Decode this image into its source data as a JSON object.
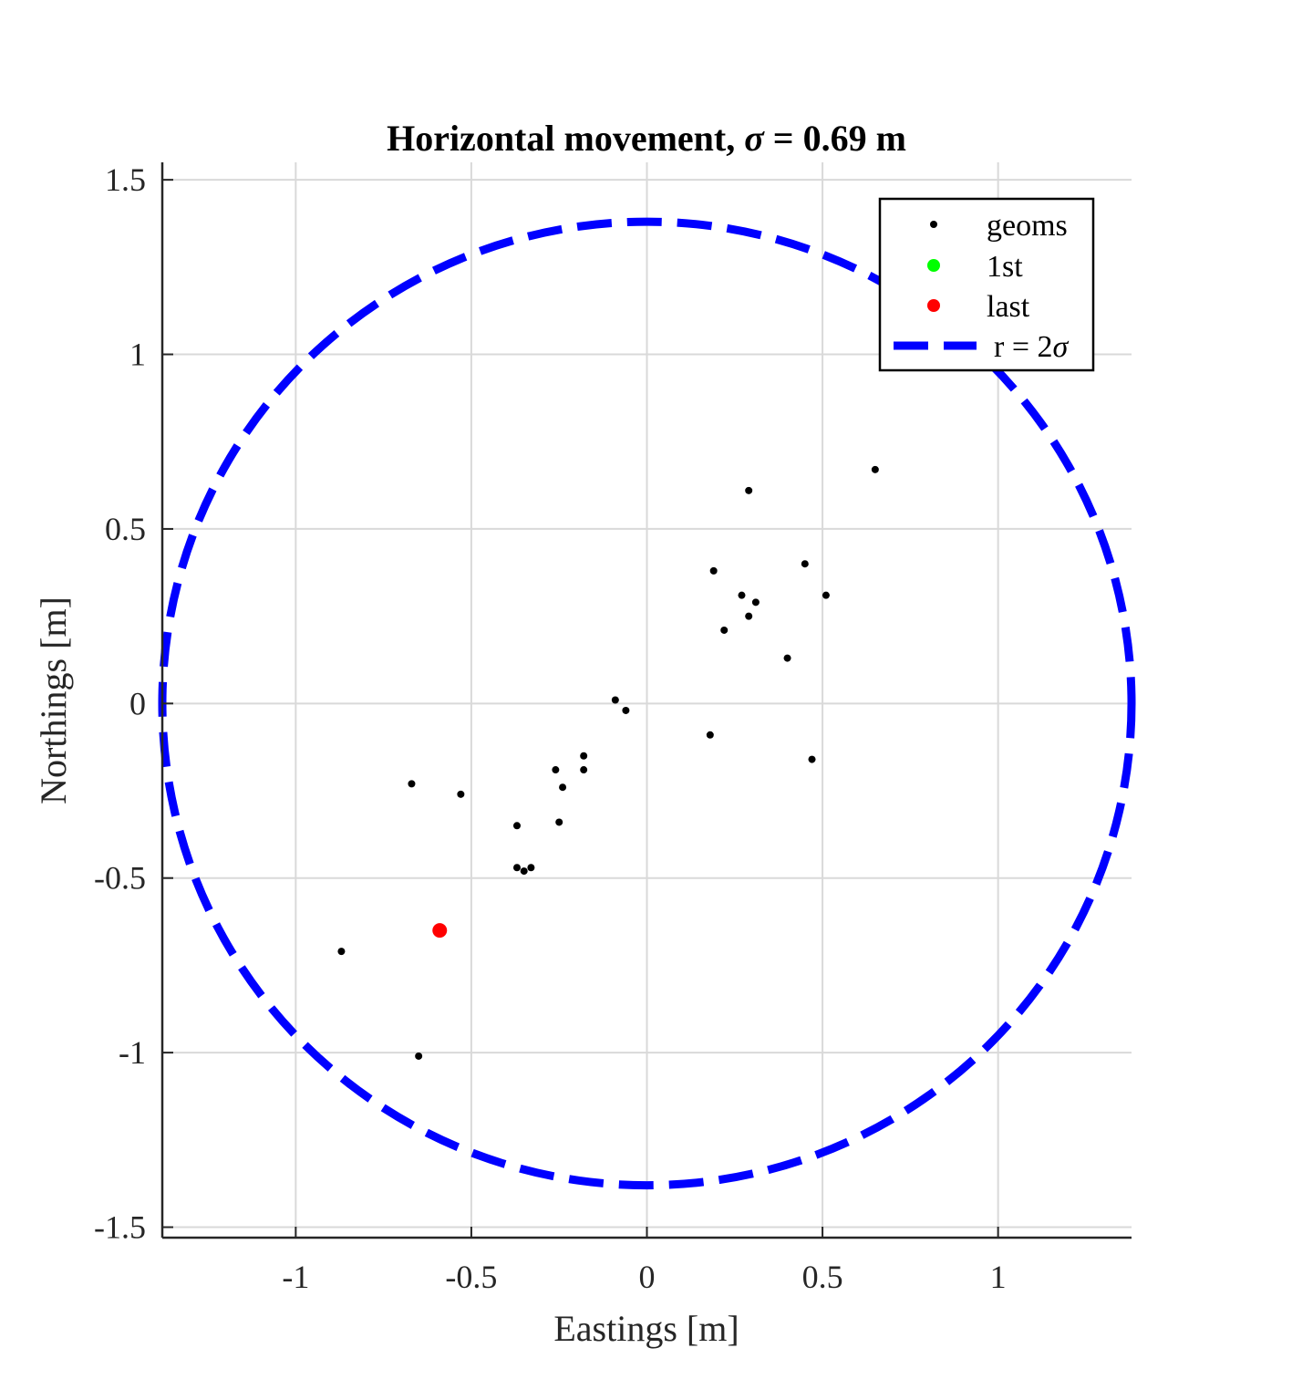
{
  "chart_data": {
    "type": "scatter",
    "title": {
      "prefix": "Horizontal movement, ",
      "symbol": "σ",
      "suffix": " = 0.69 m"
    },
    "xlabel": "Eastings [m]",
    "ylabel": "Northings [m]",
    "xlim": [
      -1.38,
      1.38
    ],
    "ylim": [
      -1.53,
      1.55
    ],
    "xticks": [
      -1,
      -0.5,
      0,
      0.5,
      1
    ],
    "xtick_labels": [
      "-1",
      "-0.5",
      "0",
      "0.5",
      "1"
    ],
    "yticks": [
      -1.5,
      -1,
      -0.5,
      0,
      0.5,
      1,
      1.5
    ],
    "ytick_labels": [
      "-1.5",
      "-1",
      "-0.5",
      "0",
      "0.5",
      "1",
      "1.5"
    ],
    "grid": true,
    "legend_position": "top-right",
    "series": [
      {
        "name": "geoms",
        "marker": "dot",
        "color": "#000000",
        "points": [
          [
            0.65,
            0.67
          ],
          [
            0.29,
            0.61
          ],
          [
            0.19,
            0.38
          ],
          [
            0.45,
            0.4
          ],
          [
            0.51,
            0.31
          ],
          [
            0.27,
            0.31
          ],
          [
            0.31,
            0.29
          ],
          [
            0.29,
            0.25
          ],
          [
            0.22,
            0.21
          ],
          [
            0.4,
            0.13
          ],
          [
            -0.09,
            0.01
          ],
          [
            -0.06,
            -0.02
          ],
          [
            0.18,
            -0.09
          ],
          [
            0.47,
            -0.16
          ],
          [
            -0.18,
            -0.15
          ],
          [
            -0.18,
            -0.19
          ],
          [
            -0.26,
            -0.19
          ],
          [
            -0.24,
            -0.24
          ],
          [
            -0.53,
            -0.26
          ],
          [
            -0.67,
            -0.23
          ],
          [
            -0.37,
            -0.35
          ],
          [
            -0.25,
            -0.34
          ],
          [
            -0.37,
            -0.47
          ],
          [
            -0.35,
            -0.48
          ],
          [
            -0.33,
            -0.47
          ],
          [
            -0.87,
            -0.71
          ],
          [
            -0.65,
            -1.01
          ]
        ]
      },
      {
        "name": "1st",
        "marker": "filled-circle",
        "color": "#00ff00",
        "points": []
      },
      {
        "name": "last",
        "marker": "filled-circle",
        "color": "#ff0000",
        "points": [
          [
            -0.59,
            -0.65
          ]
        ]
      },
      {
        "name_prefix": "r = 2",
        "name_symbol": "σ",
        "type": "circle",
        "line_style": "dashed",
        "color": "#0000ff",
        "center": [
          0,
          0
        ],
        "radius": 1.38
      }
    ]
  }
}
